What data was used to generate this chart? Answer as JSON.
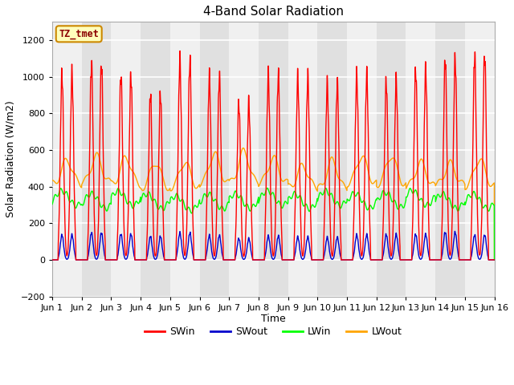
{
  "title": "4-Band Solar Radiation",
  "xlabel": "Time",
  "ylabel": "Solar Radiation (W/m2)",
  "ylim": [
    -200,
    1300
  ],
  "yticks": [
    -200,
    0,
    200,
    400,
    600,
    800,
    1000,
    1200
  ],
  "xlim_days": [
    0,
    15
  ],
  "xtick_labels": [
    "Jun 1",
    "Jun 2",
    "Jun 3",
    "Jun 4",
    "Jun 5",
    "Jun 6",
    "Jun 7",
    "Jun 8",
    "Jun 9",
    "Jun 10",
    "Jun 11",
    "Jun 12",
    "Jun 13",
    "Jun 14",
    "Jun 15",
    "Jun 16"
  ],
  "colors": {
    "SWin": "#ff0000",
    "SWout": "#0000cc",
    "LWin": "#00ff00",
    "LWout": "#ffa500"
  },
  "legend_label": "TZ_tmet",
  "plot_bg_color": "#ffffff",
  "band_colors": [
    "#f0f0f0",
    "#e0e0e0"
  ]
}
